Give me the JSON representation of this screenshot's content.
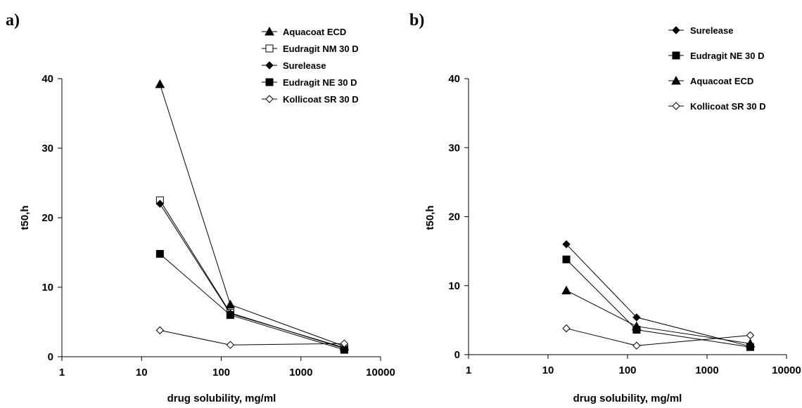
{
  "chart_data": [
    {
      "type": "line",
      "panel_label": "a)",
      "xlabel": "drug solubility, mg/ml",
      "ylabel": "t50,h",
      "xscale": "log",
      "xlim": [
        1,
        10000
      ],
      "ylim": [
        0,
        40
      ],
      "xticks": [
        "1",
        "10",
        "100",
        "1000",
        "10000"
      ],
      "yticks": [
        "0",
        "10",
        "20",
        "30",
        "40"
      ],
      "grid": false,
      "legend_position": "top-right",
      "series": [
        {
          "name": "Aquacoat ECD",
          "marker": "triangle-filled",
          "x": [
            17,
            130,
            3500
          ],
          "y": [
            39.2,
            7.5,
            1.5
          ]
        },
        {
          "name": "Eudragit NM 30 D",
          "marker": "square-open",
          "x": [
            17,
            130,
            3500
          ],
          "y": [
            22.5,
            6.3,
            1.2
          ]
        },
        {
          "name": "Surelease",
          "marker": "diamond-filled",
          "x": [
            17,
            130,
            3500
          ],
          "y": [
            22.0,
            6.2,
            1.3
          ]
        },
        {
          "name": "Eudragit NE 30 D",
          "marker": "square-filled",
          "x": [
            17,
            130,
            3500
          ],
          "y": [
            14.8,
            6.0,
            1.0
          ]
        },
        {
          "name": "Kollicoat SR 30 D",
          "marker": "diamond-open",
          "x": [
            17,
            130,
            3500
          ],
          "y": [
            3.8,
            1.7,
            1.9
          ]
        }
      ]
    },
    {
      "type": "line",
      "panel_label": "b)",
      "xlabel": "drug solubility, mg/ml",
      "ylabel": "t50,h",
      "xscale": "log",
      "xlim": [
        1,
        10000
      ],
      "ylim": [
        0,
        40
      ],
      "xticks": [
        "1",
        "10",
        "100",
        "1000",
        "10000"
      ],
      "yticks": [
        "0",
        "10",
        "20",
        "30",
        "40"
      ],
      "grid": false,
      "legend_position": "top-right",
      "series": [
        {
          "name": "Surelease",
          "marker": "diamond-filled",
          "x": [
            17,
            130,
            3500
          ],
          "y": [
            16.0,
            5.4,
            1.2
          ]
        },
        {
          "name": "Eudragit NE 30 D",
          "marker": "square-filled",
          "x": [
            17,
            130,
            3500
          ],
          "y": [
            13.8,
            3.6,
            1.1
          ]
        },
        {
          "name": "Aquacoat ECD",
          "marker": "triangle-filled",
          "x": [
            17,
            130,
            3500
          ],
          "y": [
            9.3,
            4.1,
            1.6
          ]
        },
        {
          "name": "Kollicoat SR 30 D",
          "marker": "diamond-open",
          "x": [
            17,
            130,
            3500
          ],
          "y": [
            3.8,
            1.3,
            2.8
          ]
        }
      ]
    }
  ]
}
